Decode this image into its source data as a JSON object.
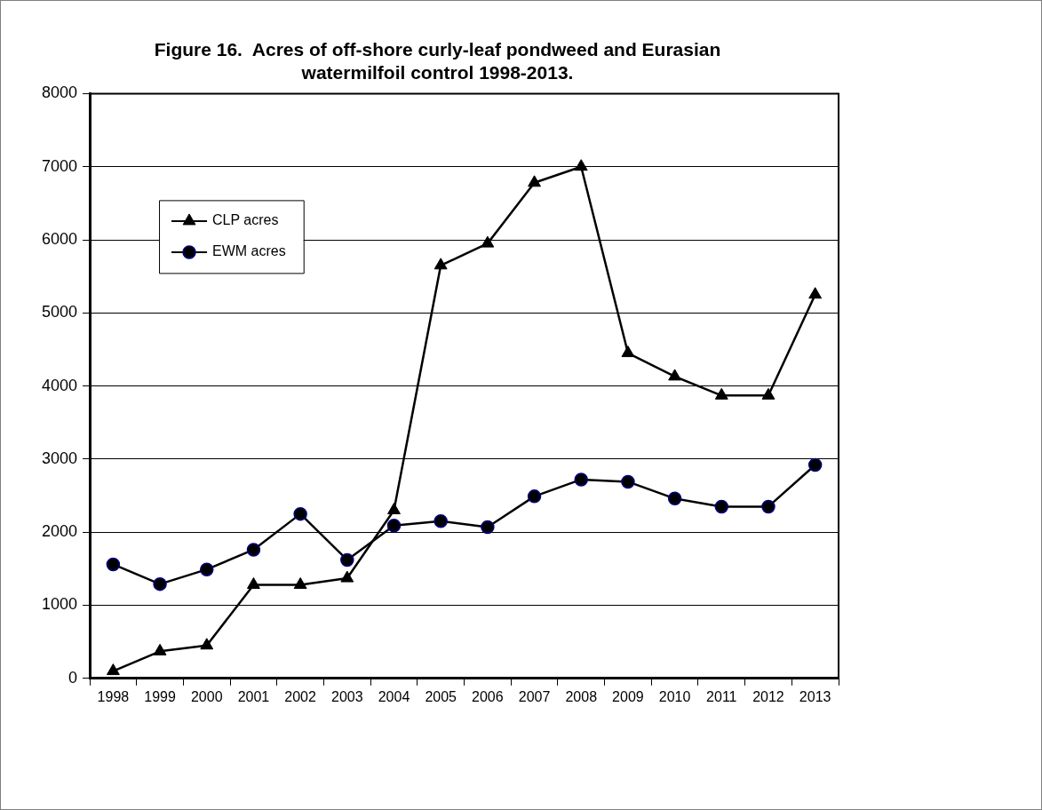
{
  "chart_data": {
    "type": "line",
    "title": "Figure 16.  Acres of off-shore curly-leaf pondweed and Eurasian watermilfoil control 1998-2013.",
    "categories": [
      "1998",
      "1999",
      "2000",
      "2001",
      "2002",
      "2003",
      "2004",
      "2005",
      "2006",
      "2007",
      "2008",
      "2009",
      "2010",
      "2011",
      "2012",
      "2013"
    ],
    "series": [
      {
        "name": "CLP acres",
        "color": "#000000",
        "marker": "triangle",
        "values": [
          100,
          370,
          450,
          1280,
          1280,
          1370,
          2300,
          5650,
          5950,
          6780,
          7000,
          4450,
          4130,
          3870,
          3870,
          5250
        ]
      },
      {
        "name": "EWM acres",
        "color": "#000000",
        "marker": "circle",
        "values": [
          1560,
          1290,
          1490,
          1760,
          2250,
          1620,
          2090,
          2150,
          2070,
          2490,
          2720,
          2690,
          2460,
          2350,
          2350,
          2920
        ]
      }
    ],
    "ylim": [
      0,
      8000
    ],
    "yticks": [
      0,
      1000,
      2000,
      3000,
      4000,
      5000,
      6000,
      7000,
      8000
    ],
    "grid": "y",
    "legend": "top left",
    "line_style": "solid"
  }
}
